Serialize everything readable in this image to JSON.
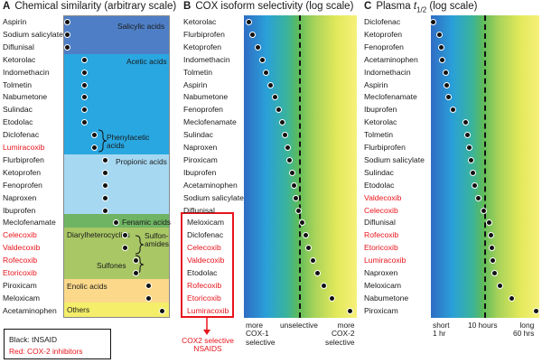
{
  "panelA": {
    "letter": "A",
    "title": "Chemical similarity (arbitrary scale)",
    "drugs": [
      {
        "name": "Aspirin",
        "cox2": false,
        "level": 0.0
      },
      {
        "name": "Sodium salicylate",
        "cox2": false,
        "level": 0.0
      },
      {
        "name": "Diflunisal",
        "cox2": false,
        "level": 0.0
      },
      {
        "name": "Ketorolac",
        "cox2": false,
        "level": 0.18
      },
      {
        "name": "Indomethacin",
        "cox2": false,
        "level": 0.18
      },
      {
        "name": "Tolmetin",
        "cox2": false,
        "level": 0.18
      },
      {
        "name": "Nabumetone",
        "cox2": false,
        "level": 0.18
      },
      {
        "name": "Sulindac",
        "cox2": false,
        "level": 0.18
      },
      {
        "name": "Etodolac",
        "cox2": false,
        "level": 0.18
      },
      {
        "name": "Diclofenac",
        "cox2": false,
        "level": 0.28
      },
      {
        "name": "Lumiracoxib",
        "cox2": true,
        "level": 0.28
      },
      {
        "name": "Flurbiprofen",
        "cox2": false,
        "level": 0.39
      },
      {
        "name": "Ketoprofen",
        "cox2": false,
        "level": 0.39
      },
      {
        "name": "Fenoprofen",
        "cox2": false,
        "level": 0.39
      },
      {
        "name": "Naproxen",
        "cox2": false,
        "level": 0.39
      },
      {
        "name": "Ibuprofen",
        "cox2": false,
        "level": 0.39
      },
      {
        "name": "Meclofenamate",
        "cox2": false,
        "level": 0.5
      },
      {
        "name": "Celecoxib",
        "cox2": true,
        "level": 0.59
      },
      {
        "name": "Valdecoxib",
        "cox2": true,
        "level": 0.59
      },
      {
        "name": "Rofecoxib",
        "cox2": true,
        "level": 0.7
      },
      {
        "name": "Etoricoxib",
        "cox2": true,
        "level": 0.7
      },
      {
        "name": "Piroxicam",
        "cox2": false,
        "level": 0.83
      },
      {
        "name": "Meloxicam",
        "cox2": false,
        "level": 0.83
      },
      {
        "name": "Acetaminophen",
        "cox2": false,
        "level": 0.97
      }
    ],
    "groups": {
      "salicylic": "Salicylic acids",
      "acetic": "Acetic acids",
      "phenylacetic": "Phenylacetic acids",
      "propionic": "Propionic acids",
      "fenamic": "Fenamic acids",
      "diarylheterocyclics": "Diarylheterocyclics",
      "sulfonamides": "Sulfon-amides",
      "sulfones": "Sulfones",
      "enolic": "Enolic acids",
      "others": "Others"
    },
    "colors": {
      "salicylic": "#4e7fc6",
      "acetic": "#29a7e1",
      "propionic": "#a6d8f2",
      "fenamic": "#6fb463",
      "diarylheterocyclics": "#a9c765",
      "enolic": "#fbd88a",
      "others": "#f4ee6a"
    }
  },
  "panelB": {
    "letter": "B",
    "title": "COX isoform selectivity (log scale)",
    "drugs": [
      {
        "name": "Ketorolac",
        "cox2": false,
        "value": 0.02
      },
      {
        "name": "Flurbiprofen",
        "cox2": false,
        "value": 0.05
      },
      {
        "name": "Ketoprofen",
        "cox2": false,
        "value": 0.1
      },
      {
        "name": "Indomethacin",
        "cox2": false,
        "value": 0.14
      },
      {
        "name": "Tolmetin",
        "cox2": false,
        "value": 0.18
      },
      {
        "name": "Aspirin",
        "cox2": false,
        "value": 0.22
      },
      {
        "name": "Nabumetone",
        "cox2": false,
        "value": 0.26
      },
      {
        "name": "Fenoprofen",
        "cox2": false,
        "value": 0.3
      },
      {
        "name": "Meclofenamate",
        "cox2": false,
        "value": 0.33
      },
      {
        "name": "Sulindac",
        "cox2": false,
        "value": 0.36
      },
      {
        "name": "Naproxen",
        "cox2": false,
        "value": 0.38
      },
      {
        "name": "Piroxicam",
        "cox2": false,
        "value": 0.4
      },
      {
        "name": "Ibuprofen",
        "cox2": false,
        "value": 0.42
      },
      {
        "name": "Acetaminophen",
        "cox2": false,
        "value": 0.44
      },
      {
        "name": "Sodium salicylate",
        "cox2": false,
        "value": 0.46
      },
      {
        "name": "Diflunisal",
        "cox2": false,
        "value": 0.48
      },
      {
        "name": "Meloxicam",
        "cox2": false,
        "value": 0.52
      },
      {
        "name": "Diclofenac",
        "cox2": false,
        "value": 0.55
      },
      {
        "name": "Celecoxib",
        "cox2": true,
        "value": 0.58
      },
      {
        "name": "Valdecoxib",
        "cox2": true,
        "value": 0.62
      },
      {
        "name": "Etodolac",
        "cox2": false,
        "value": 0.66
      },
      {
        "name": "Rofecoxib",
        "cox2": true,
        "value": 0.72
      },
      {
        "name": "Etoricoxib",
        "cox2": true,
        "value": 0.8
      },
      {
        "name": "Lumiracoxib",
        "cox2": true,
        "value": 0.97
      }
    ],
    "axis": {
      "left": "more\nCOX-1\nselective",
      "mid": "unselective",
      "right": "more\nCOX-2\nselective"
    },
    "callout": "COX2 selective\nNSAIDS"
  },
  "panelC": {
    "letter": "C",
    "title_prefix": "Plasma ",
    "title_t": "t",
    "title_sub": "1/2",
    "title_suffix": " (log scale)",
    "drugs": [
      {
        "name": "Diclofenac",
        "cox2": false,
        "value": 0.0
      },
      {
        "name": "Ketoprofen",
        "cox2": false,
        "value": 0.06
      },
      {
        "name": "Fenoprofen",
        "cox2": false,
        "value": 0.08
      },
      {
        "name": "Acetaminophen",
        "cox2": false,
        "value": 0.09
      },
      {
        "name": "Indomethacin",
        "cox2": false,
        "value": 0.12
      },
      {
        "name": "Aspirin",
        "cox2": false,
        "value": 0.13
      },
      {
        "name": "Meclofenamate",
        "cox2": false,
        "value": 0.15
      },
      {
        "name": "Ibuprofen",
        "cox2": false,
        "value": 0.19
      },
      {
        "name": "Ketorolac",
        "cox2": false,
        "value": 0.32
      },
      {
        "name": "Tolmetin",
        "cox2": false,
        "value": 0.33
      },
      {
        "name": "Flurbiprofen",
        "cox2": false,
        "value": 0.35
      },
      {
        "name": "Sodium salicylate",
        "cox2": false,
        "value": 0.37
      },
      {
        "name": "Sulindac",
        "cox2": false,
        "value": 0.39
      },
      {
        "name": "Etodolac",
        "cox2": false,
        "value": 0.4
      },
      {
        "name": "Valdecoxib",
        "cox2": true,
        "value": 0.44
      },
      {
        "name": "Celecoxib",
        "cox2": true,
        "value": 0.49
      },
      {
        "name": "Diflunisal",
        "cox2": false,
        "value": 0.54
      },
      {
        "name": "Rofecoxib",
        "cox2": true,
        "value": 0.56
      },
      {
        "name": "Etoricoxib",
        "cox2": true,
        "value": 0.57
      },
      {
        "name": "Lumiracoxib",
        "cox2": true,
        "value": 0.58
      },
      {
        "name": "Naproxen",
        "cox2": false,
        "value": 0.6
      },
      {
        "name": "Meloxicam",
        "cox2": false,
        "value": 0.65
      },
      {
        "name": "Nabumetone",
        "cox2": false,
        "value": 0.76
      },
      {
        "name": "Piroxicam",
        "cox2": false,
        "value": 1.0
      }
    ],
    "axis": {
      "left": "short\n1 hr",
      "mid": "10 hours",
      "right": "long\n60 hrs"
    }
  },
  "legend": {
    "black": "Black: tNSAID",
    "red": "Red: COX-2 inhibitors"
  }
}
